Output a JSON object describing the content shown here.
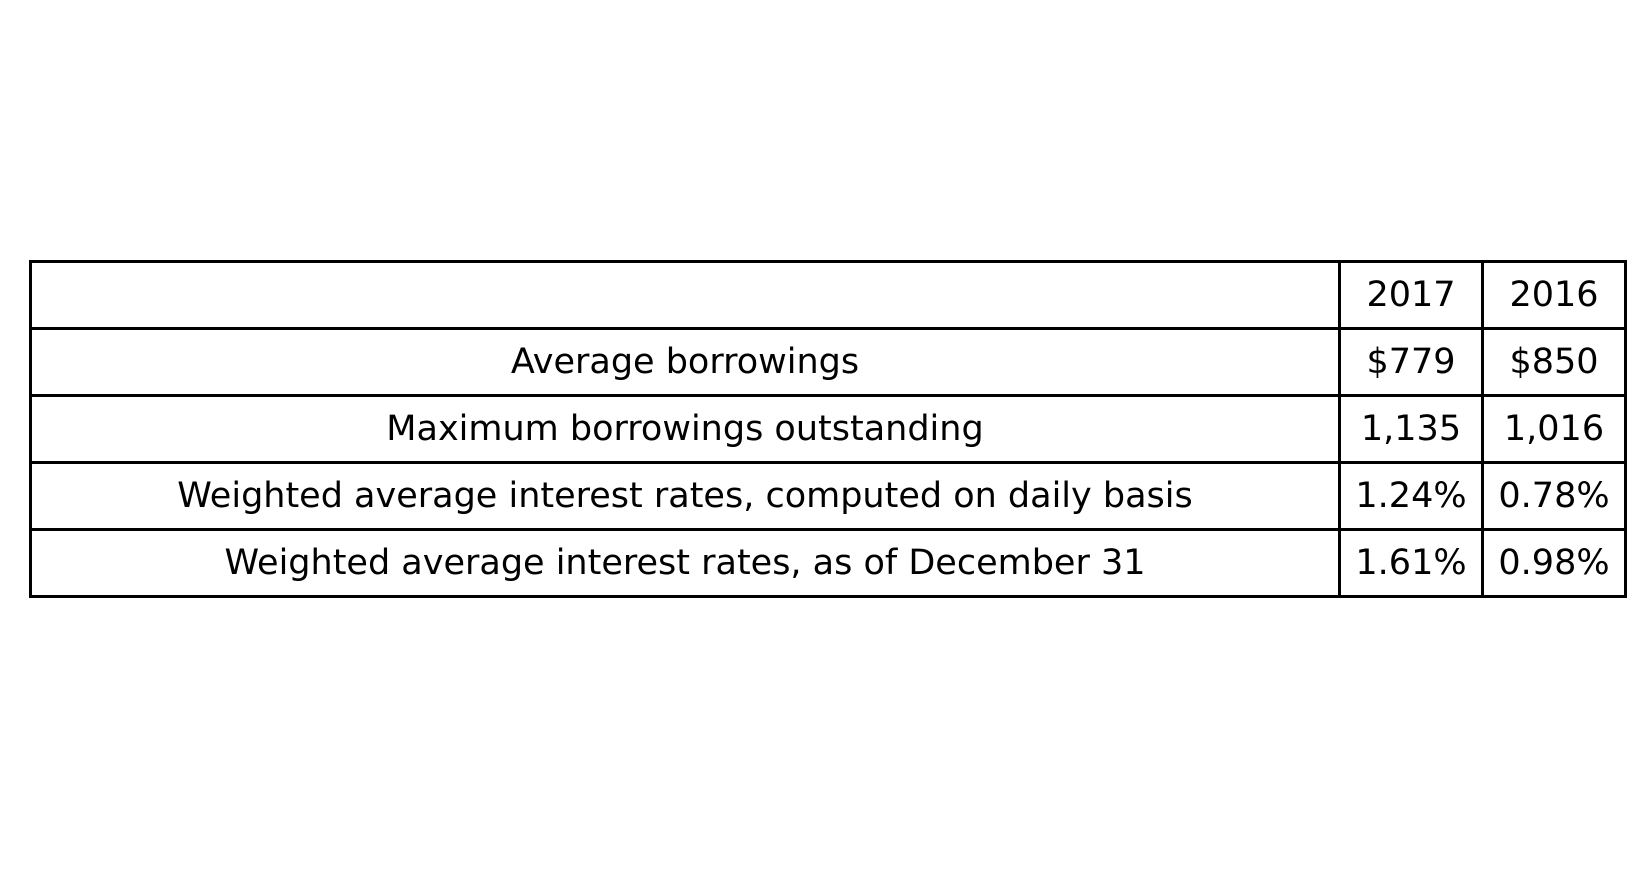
{
  "chart_data": {
    "type": "table",
    "columns": [
      "",
      "2017",
      "2016"
    ],
    "rows": [
      {
        "label": "Average borrowings",
        "values": [
          "$779",
          "$850"
        ]
      },
      {
        "label": "Maximum borrowings outstanding",
        "values": [
          "1,135",
          "1,016"
        ]
      },
      {
        "label": "Weighted average interest rates, computed on daily basis",
        "values": [
          "1.24%",
          "0.78%"
        ]
      },
      {
        "label": "Weighted average interest rates, as of December 31",
        "values": [
          "1.61%",
          "0.98%"
        ]
      }
    ]
  },
  "colors": {
    "background": "#ffffff",
    "text": "#000000",
    "border": "#000000"
  }
}
